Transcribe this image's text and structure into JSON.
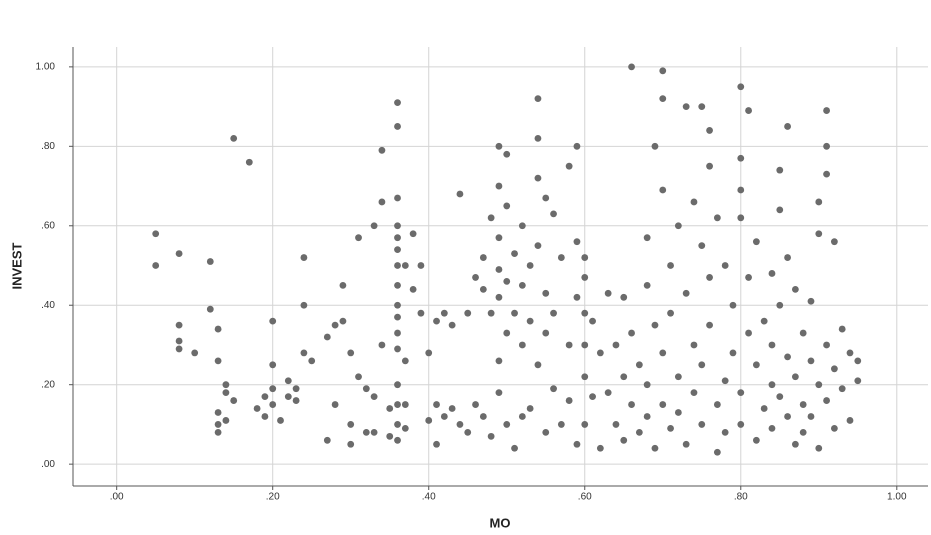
{
  "chart_data": {
    "type": "scatter",
    "x_label": "MO",
    "y_label": "INVEST",
    "color": "#6b6b6b",
    "grid": true,
    "xlim": [
      -0.056,
      1.04
    ],
    "ylim": [
      -0.055,
      1.05
    ],
    "xticks": [
      {
        "value": 0,
        "label": ".00"
      },
      {
        "value": 0.2,
        "label": ".20"
      },
      {
        "value": 0.4,
        "label": ".40"
      },
      {
        "value": 0.6,
        "label": ".60"
      },
      {
        "value": 0.8,
        "label": ".80"
      },
      {
        "value": 1,
        "label": "1.00"
      }
    ],
    "yticks": [
      {
        "value": 0,
        "label": ".00"
      },
      {
        "value": 0.2,
        "label": ".20"
      },
      {
        "value": 0.4,
        "label": ".40"
      },
      {
        "value": 0.6,
        "label": ".60"
      },
      {
        "value": 0.8,
        "label": ".80"
      },
      {
        "value": 1,
        "label": "1.00"
      }
    ],
    "x": [
      0.05,
      0.05,
      0.08,
      0.08,
      0.08,
      0.08,
      0.1,
      0.12,
      0.12,
      0.13,
      0.13,
      0.13,
      0.13,
      0.13,
      0.14,
      0.14,
      0.14,
      0.15,
      0.15,
      0.17,
      0.18,
      0.19,
      0.19,
      0.2,
      0.2,
      0.2,
      0.2,
      0.21,
      0.22,
      0.22,
      0.23,
      0.23,
      0.24,
      0.24,
      0.24,
      0.25,
      0.27,
      0.27,
      0.28,
      0.28,
      0.29,
      0.29,
      0.3,
      0.3,
      0.3,
      0.31,
      0.31,
      0.32,
      0.32,
      0.33,
      0.33,
      0.33,
      0.34,
      0.34,
      0.34,
      0.35,
      0.35,
      0.36,
      0.36,
      0.36,
      0.36,
      0.36,
      0.36,
      0.36,
      0.36,
      0.36,
      0.36,
      0.36,
      0.36,
      0.36,
      0.36,
      0.36,
      0.36,
      0.37,
      0.37,
      0.37,
      0.37,
      0.38,
      0.38,
      0.39,
      0.39,
      0.4,
      0.4,
      0.41,
      0.41,
      0.41,
      0.42,
      0.42,
      0.43,
      0.43,
      0.44,
      0.44,
      0.45,
      0.45,
      0.46,
      0.46,
      0.47,
      0.47,
      0.47,
      0.48,
      0.48,
      0.48,
      0.49,
      0.49,
      0.49,
      0.49,
      0.49,
      0.49,
      0.49,
      0.5,
      0.5,
      0.5,
      0.5,
      0.5,
      0.51,
      0.51,
      0.51,
      0.52,
      0.52,
      0.52,
      0.52,
      0.53,
      0.53,
      0.53,
      0.54,
      0.54,
      0.54,
      0.54,
      0.54,
      0.55,
      0.55,
      0.55,
      0.55,
      0.56,
      0.56,
      0.56,
      0.57,
      0.57,
      0.58,
      0.58,
      0.58,
      0.59,
      0.59,
      0.59,
      0.59,
      0.6,
      0.6,
      0.6,
      0.6,
      0.6,
      0.6,
      0.61,
      0.61,
      0.62,
      0.62,
      0.63,
      0.63,
      0.64,
      0.64,
      0.65,
      0.65,
      0.65,
      0.66,
      0.66,
      0.66,
      0.67,
      0.67,
      0.68,
      0.68,
      0.68,
      0.68,
      0.69,
      0.69,
      0.69,
      0.7,
      0.7,
      0.7,
      0.7,
      0.7,
      0.71,
      0.71,
      0.71,
      0.72,
      0.72,
      0.72,
      0.73,
      0.73,
      0.73,
      0.74,
      0.74,
      0.74,
      0.75,
      0.75,
      0.75,
      0.75,
      0.76,
      0.76,
      0.76,
      0.76,
      0.77,
      0.77,
      0.77,
      0.78,
      0.78,
      0.78,
      0.79,
      0.79,
      0.8,
      0.8,
      0.8,
      0.8,
      0.8,
      0.8,
      0.81,
      0.81,
      0.81,
      0.82,
      0.82,
      0.82,
      0.83,
      0.83,
      0.84,
      0.84,
      0.84,
      0.84,
      0.85,
      0.85,
      0.85,
      0.85,
      0.86,
      0.86,
      0.86,
      0.86,
      0.87,
      0.87,
      0.87,
      0.88,
      0.88,
      0.88,
      0.89,
      0.89,
      0.89,
      0.9,
      0.9,
      0.9,
      0.9,
      0.91,
      0.91,
      0.91,
      0.91,
      0.91,
      0.92,
      0.92,
      0.92,
      0.93,
      0.93,
      0.94,
      0.94,
      0.95,
      0.95
    ],
    "values": [
      0.58,
      0.5,
      0.53,
      0.35,
      0.31,
      0.29,
      0.28,
      0.51,
      0.39,
      0.34,
      0.26,
      0.13,
      0.1,
      0.08,
      0.18,
      0.11,
      0.2,
      0.82,
      0.16,
      0.76,
      0.14,
      0.17,
      0.12,
      0.36,
      0.25,
      0.19,
      0.15,
      0.11,
      0.21,
      0.17,
      0.19,
      0.16,
      0.52,
      0.4,
      0.28,
      0.26,
      0.32,
      0.06,
      0.35,
      0.15,
      0.45,
      0.36,
      0.28,
      0.1,
      0.05,
      0.57,
      0.22,
      0.19,
      0.08,
      0.08,
      0.17,
      0.6,
      0.79,
      0.66,
      0.3,
      0.14,
      0.07,
      0.91,
      0.85,
      0.67,
      0.6,
      0.57,
      0.54,
      0.5,
      0.45,
      0.4,
      0.37,
      0.33,
      0.29,
      0.2,
      0.15,
      0.1,
      0.06,
      0.5,
      0.26,
      0.15,
      0.09,
      0.58,
      0.44,
      0.5,
      0.38,
      0.28,
      0.11,
      0.36,
      0.15,
      0.05,
      0.38,
      0.12,
      0.35,
      0.14,
      0.68,
      0.1,
      0.38,
      0.08,
      0.47,
      0.15,
      0.44,
      0.52,
      0.12,
      0.62,
      0.38,
      0.07,
      0.8,
      0.7,
      0.57,
      0.49,
      0.42,
      0.26,
      0.18,
      0.78,
      0.65,
      0.46,
      0.33,
      0.1,
      0.53,
      0.38,
      0.04,
      0.6,
      0.45,
      0.3,
      0.12,
      0.5,
      0.36,
      0.14,
      0.92,
      0.82,
      0.72,
      0.55,
      0.25,
      0.67,
      0.43,
      0.33,
      0.08,
      0.63,
      0.38,
      0.19,
      0.52,
      0.1,
      0.75,
      0.3,
      0.16,
      0.8,
      0.56,
      0.42,
      0.05,
      0.52,
      0.47,
      0.38,
      0.3,
      0.22,
      0.1,
      0.36,
      0.17,
      0.28,
      0.04,
      0.43,
      0.18,
      0.1,
      0.3,
      0.42,
      0.22,
      0.06,
      1.0,
      0.33,
      0.15,
      0.25,
      0.08,
      0.57,
      0.45,
      0.2,
      0.12,
      0.8,
      0.35,
      0.04,
      0.99,
      0.92,
      0.69,
      0.28,
      0.15,
      0.5,
      0.38,
      0.09,
      0.6,
      0.22,
      0.13,
      0.9,
      0.43,
      0.05,
      0.66,
      0.3,
      0.18,
      0.9,
      0.55,
      0.25,
      0.1,
      0.84,
      0.75,
      0.47,
      0.35,
      0.62,
      0.15,
      0.03,
      0.5,
      0.21,
      0.08,
      0.4,
      0.28,
      0.95,
      0.77,
      0.69,
      0.62,
      0.18,
      0.1,
      0.89,
      0.47,
      0.33,
      0.56,
      0.25,
      0.06,
      0.36,
      0.14,
      0.48,
      0.3,
      0.2,
      0.09,
      0.74,
      0.64,
      0.4,
      0.17,
      0.85,
      0.52,
      0.27,
      0.12,
      0.44,
      0.22,
      0.05,
      0.33,
      0.15,
      0.08,
      0.41,
      0.26,
      0.12,
      0.66,
      0.58,
      0.2,
      0.04,
      0.89,
      0.8,
      0.73,
      0.3,
      0.16,
      0.56,
      0.24,
      0.09,
      0.34,
      0.19,
      0.28,
      0.11,
      0.26,
      0.21
    ]
  }
}
